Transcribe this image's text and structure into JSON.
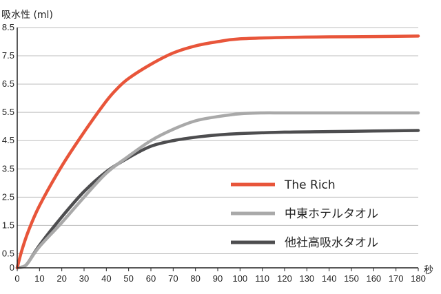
{
  "chart_data": {
    "type": "line",
    "title": "",
    "ylabel": "吸水性 (ml)",
    "xlabel": "秒",
    "xlim": [
      0,
      180
    ],
    "ylim": [
      0,
      8.5
    ],
    "x_ticks": [
      0,
      10,
      20,
      30,
      40,
      50,
      60,
      70,
      80,
      90,
      100,
      110,
      120,
      130,
      140,
      150,
      160,
      170,
      180
    ],
    "y_ticks": [
      0,
      0.5,
      1.5,
      2.5,
      3.5,
      4.5,
      5.5,
      6.5,
      7.5,
      8.5
    ],
    "y_tick_labels": [
      "0",
      "0.5",
      "1.5",
      "2.5",
      "3.5",
      "4.5",
      "5.5",
      "6.5",
      "7.5",
      "8.5"
    ],
    "grid": {
      "horizontal": true,
      "vertical": false
    },
    "legend": {
      "placement": "lower-right"
    },
    "series": [
      {
        "name": "The Rich",
        "color": "#e8553a",
        "x": [
          0,
          2,
          5,
          10,
          20,
          30,
          40,
          45,
          50,
          60,
          70,
          80,
          90,
          100,
          120,
          140,
          160,
          180
        ],
        "y": [
          0,
          0.6,
          1.3,
          2.2,
          3.6,
          4.8,
          5.9,
          6.35,
          6.7,
          7.2,
          7.6,
          7.85,
          8.0,
          8.1,
          8.15,
          8.17,
          8.18,
          8.2
        ]
      },
      {
        "name": "中東ホテルタオル",
        "color": "#a9a9a9",
        "x": [
          0,
          3,
          5,
          10,
          20,
          30,
          40,
          50,
          60,
          70,
          80,
          90,
          100,
          110,
          120,
          140,
          160,
          180
        ],
        "y": [
          0,
          0.05,
          0.2,
          0.75,
          1.6,
          2.5,
          3.35,
          3.95,
          4.5,
          4.9,
          5.2,
          5.35,
          5.45,
          5.48,
          5.48,
          5.48,
          5.48,
          5.48
        ]
      },
      {
        "name": "他社高吸水タオル",
        "color": "#4d4d4f",
        "x": [
          0,
          3,
          5,
          10,
          20,
          30,
          40,
          50,
          60,
          70,
          80,
          90,
          100,
          120,
          140,
          160,
          180
        ],
        "y": [
          0,
          0.05,
          0.2,
          0.8,
          1.8,
          2.7,
          3.4,
          3.9,
          4.3,
          4.5,
          4.62,
          4.7,
          4.75,
          4.8,
          4.82,
          4.84,
          4.86
        ]
      }
    ]
  }
}
